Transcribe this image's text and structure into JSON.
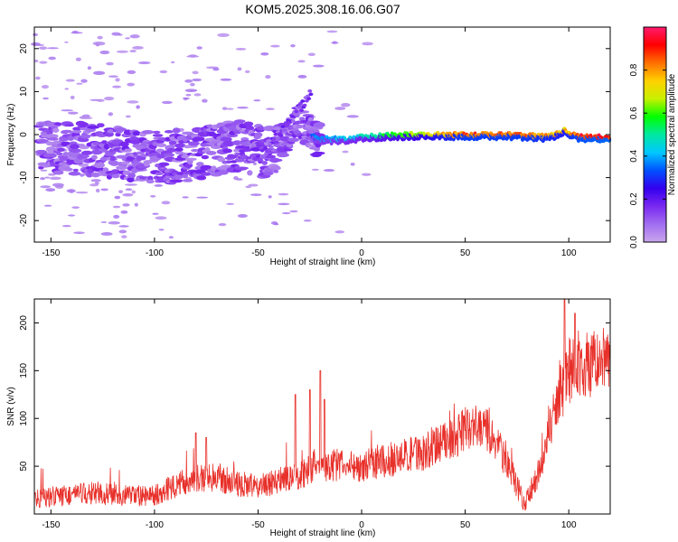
{
  "title": "KOM5.2025.308.16.06.G07",
  "colors": {
    "snr_line": "#e8302a",
    "axis": "#000000",
    "colormap": [
      "#c9a6ee",
      "#a26ef0",
      "#7a28f0",
      "#3300ee",
      "#0050ff",
      "#00c8ff",
      "#00e8a0",
      "#00ff00",
      "#c8f000",
      "#ffd000",
      "#ff7000",
      "#ff0000",
      "#ff1a6e"
    ]
  },
  "chart_data": [
    {
      "type": "heatmap",
      "title": "KOM5.2025.308.16.06.G07",
      "xlabel": "Height of straight line (km)",
      "ylabel": "Frequency (Hz)",
      "xlim": [
        -158,
        120
      ],
      "ylim": [
        -25,
        25
      ],
      "x_ticks": [
        -150,
        -100,
        -50,
        0,
        50,
        100
      ],
      "y_ticks": [
        -20,
        -10,
        0,
        10,
        20
      ],
      "colorbar": {
        "label": "Normalized spectral amplitude",
        "range": [
          0,
          1
        ],
        "ticks": [
          "0.0",
          "0.2",
          "0.4",
          "0.6",
          "0.8"
        ]
      },
      "ridge": [
        {
          "x": -155,
          "f": -2.5,
          "amp": 0.1
        },
        {
          "x": -130,
          "f": -3.5,
          "amp": 0.12
        },
        {
          "x": -100,
          "f": -5.5,
          "amp": 0.14
        },
        {
          "x": -80,
          "f": -4.5,
          "amp": 0.16
        },
        {
          "x": -60,
          "f": -2.5,
          "amp": 0.16
        },
        {
          "x": -45,
          "f": -4.5,
          "amp": 0.18
        },
        {
          "x": -30,
          "f": 3,
          "amp": 0.18
        },
        {
          "x": -22,
          "f": -1,
          "amp": 0.4
        },
        {
          "x": -10,
          "f": -1,
          "amp": 0.45
        },
        {
          "x": 0,
          "f": -0.5,
          "amp": 0.5
        },
        {
          "x": 20,
          "f": 0,
          "amp": 0.65
        },
        {
          "x": 50,
          "f": 0,
          "amp": 0.9
        },
        {
          "x": 75,
          "f": 0,
          "amp": 0.9
        },
        {
          "x": 90,
          "f": -0.5,
          "amp": 0.85
        },
        {
          "x": 98,
          "f": 1,
          "amp": 0.8
        },
        {
          "x": 105,
          "f": -0.5,
          "amp": 0.95
        },
        {
          "x": 120,
          "f": -0.5,
          "amp": 1.0
        }
      ]
    },
    {
      "type": "line",
      "xlabel": "Height of straight line (km)",
      "ylabel": "SNR (v/v)",
      "xlim": [
        -158,
        120
      ],
      "ylim": [
        0,
        225
      ],
      "x_ticks": [
        -150,
        -100,
        -50,
        0,
        50,
        100
      ],
      "y_ticks": [
        50,
        100,
        150,
        200
      ],
      "series": [
        {
          "name": "SNR",
          "x": [
            -158,
            -150,
            -140,
            -130,
            -120,
            -110,
            -100,
            -90,
            -80,
            -70,
            -60,
            -50,
            -40,
            -30,
            -20,
            -10,
            0,
            10,
            20,
            30,
            40,
            50,
            55,
            60,
            65,
            70,
            75,
            78,
            80,
            85,
            90,
            95,
            100,
            105,
            110,
            120
          ],
          "values": [
            15,
            18,
            20,
            22,
            20,
            18,
            20,
            30,
            38,
            38,
            32,
            28,
            35,
            40,
            48,
            52,
            50,
            55,
            60,
            65,
            75,
            88,
            92,
            88,
            75,
            55,
            30,
            12,
            15,
            40,
            80,
            120,
            150,
            160,
            155,
            160
          ],
          "spikes": [
            {
              "x": -80,
              "y": 85
            },
            {
              "x": -75,
              "y": 80
            },
            {
              "x": -32,
              "y": 125
            },
            {
              "x": -25,
              "y": 130
            },
            {
              "x": -20,
              "y": 150
            },
            {
              "x": -18,
              "y": 120
            },
            {
              "x": 98,
              "y": 225
            },
            {
              "x": 103,
              "y": 210
            }
          ]
        }
      ]
    }
  ]
}
